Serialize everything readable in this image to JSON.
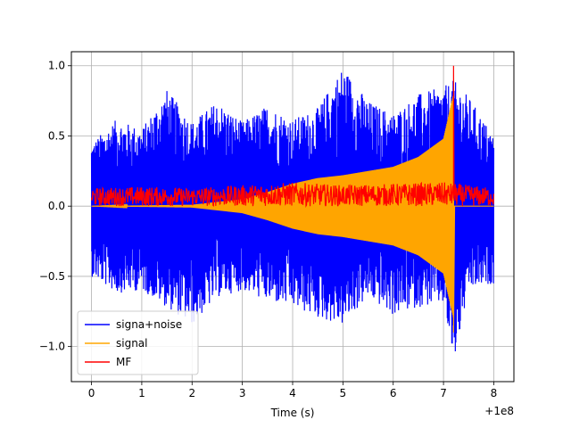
{
  "chart_data": {
    "type": "line",
    "title": "",
    "xlabel": "Time (s)",
    "ylabel": "",
    "x_offset_label": "+1e8",
    "xlim": [
      -0.4,
      8.4
    ],
    "ylim": [
      -1.25,
      1.1
    ],
    "x_ticks": [
      0,
      1,
      2,
      3,
      4,
      5,
      6,
      7,
      8
    ],
    "x_tick_labels": [
      "0",
      "1",
      "2",
      "3",
      "4",
      "5",
      "6",
      "7",
      "8"
    ],
    "y_ticks": [
      -1.0,
      -0.5,
      0.0,
      0.5,
      1.0
    ],
    "y_tick_labels": [
      "−1.0",
      "−0.5",
      "0.0",
      "0.5",
      "1.0"
    ],
    "grid": true,
    "legend_position": "lower-left",
    "series": [
      {
        "name": "signa+noise",
        "color": "#0000ff",
        "upper_envelope": [
          [
            0,
            0.45
          ],
          [
            0.5,
            0.62
          ],
          [
            1.0,
            0.55
          ],
          [
            1.5,
            0.83
          ],
          [
            2.0,
            0.6
          ],
          [
            2.5,
            0.75
          ],
          [
            3.0,
            0.6
          ],
          [
            3.5,
            0.72
          ],
          [
            4.0,
            0.62
          ],
          [
            4.5,
            0.7
          ],
          [
            5.0,
            1.0
          ],
          [
            5.5,
            0.75
          ],
          [
            6.0,
            0.66
          ],
          [
            6.5,
            0.8
          ],
          [
            7.0,
            0.85
          ],
          [
            7.2,
            0.9
          ],
          [
            7.5,
            0.78
          ],
          [
            8.0,
            0.5
          ]
        ],
        "lower_envelope": [
          [
            0,
            -0.5
          ],
          [
            0.5,
            -0.62
          ],
          [
            1.0,
            -0.6
          ],
          [
            1.5,
            -0.72
          ],
          [
            2.0,
            -0.85
          ],
          [
            2.5,
            -0.65
          ],
          [
            3.0,
            -0.6
          ],
          [
            3.5,
            -0.68
          ],
          [
            4.0,
            -0.72
          ],
          [
            4.5,
            -0.8
          ],
          [
            5.0,
            -0.85
          ],
          [
            5.5,
            -0.65
          ],
          [
            6.0,
            -0.78
          ],
          [
            6.5,
            -0.72
          ],
          [
            7.0,
            -0.7
          ],
          [
            7.2,
            -1.14
          ],
          [
            7.5,
            -0.6
          ],
          [
            8.0,
            -0.55
          ]
        ]
      },
      {
        "name": "signal",
        "color": "#ffa500",
        "amplitude_envelope": [
          [
            0,
            0.0
          ],
          [
            2.0,
            0.01
          ],
          [
            3.0,
            0.05
          ],
          [
            3.5,
            0.1
          ],
          [
            4.0,
            0.16
          ],
          [
            4.5,
            0.2
          ],
          [
            5.0,
            0.22
          ],
          [
            5.5,
            0.25
          ],
          [
            6.0,
            0.28
          ],
          [
            6.5,
            0.35
          ],
          [
            7.0,
            0.48
          ],
          [
            7.2,
            0.8
          ],
          [
            7.21,
            0.0
          ],
          [
            8.0,
            0.0
          ]
        ],
        "chirp_end": 7.2,
        "min_value": -0.9
      },
      {
        "name": "MF",
        "color": "#ff0000",
        "upper_envelope": [
          [
            0,
            0.13
          ],
          [
            1.0,
            0.14
          ],
          [
            2.0,
            0.13
          ],
          [
            3.0,
            0.15
          ],
          [
            4.0,
            0.17
          ],
          [
            5.0,
            0.15
          ],
          [
            6.0,
            0.16
          ],
          [
            7.0,
            0.17
          ],
          [
            8.0,
            0.13
          ]
        ],
        "lower_envelope": [
          [
            0,
            0.0
          ],
          [
            1.0,
            0.0
          ],
          [
            2.0,
            0.0
          ],
          [
            3.0,
            0.0
          ],
          [
            4.0,
            0.0
          ],
          [
            5.0,
            0.0
          ],
          [
            6.0,
            0.0
          ],
          [
            7.0,
            0.0
          ],
          [
            8.0,
            0.0
          ]
        ],
        "peak": [
          7.2,
          1.0
        ]
      }
    ]
  }
}
